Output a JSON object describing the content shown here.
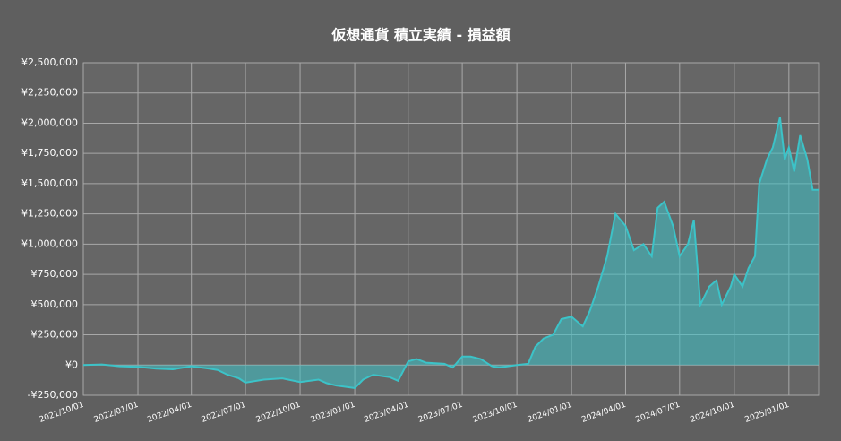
{
  "chart_data": {
    "type": "area",
    "title": "仮想通貨 積立実績 - 損益額",
    "x": [
      "2021/10/01",
      "2021/11/01",
      "2021/12/01",
      "2022/01/01",
      "2022/02/01",
      "2022/03/01",
      "2022/04/01",
      "2022/05/01",
      "2022/05/15",
      "2022/06/01",
      "2022/06/20",
      "2022/07/01",
      "2022/08/01",
      "2022/09/01",
      "2022/10/01",
      "2022/11/01",
      "2022/11/15",
      "2022/12/01",
      "2023/01/01",
      "2023/01/15",
      "2023/02/01",
      "2023/03/01",
      "2023/03/15",
      "2023/04/01",
      "2023/04/15",
      "2023/05/01",
      "2023/06/01",
      "2023/06/15",
      "2023/07/01",
      "2023/07/15",
      "2023/08/01",
      "2023/08/20",
      "2023/09/01",
      "2023/10/01",
      "2023/10/20",
      "2023/11/01",
      "2023/11/15",
      "2023/12/01",
      "2023/12/15",
      "2024/01/01",
      "2024/01/20",
      "2024/02/01",
      "2024/02/15",
      "2024/03/01",
      "2024/03/15",
      "2024/04/01",
      "2024/04/15",
      "2024/05/01",
      "2024/05/15",
      "2024/05/25",
      "2024/06/05",
      "2024/06/20",
      "2024/07/01",
      "2024/07/15",
      "2024/07/25",
      "2024/08/05",
      "2024/08/20",
      "2024/09/01",
      "2024/09/10",
      "2024/09/25",
      "2024/10/01",
      "2024/10/15",
      "2024/10/25",
      "2024/11/05",
      "2024/11/12",
      "2024/11/25",
      "2024/12/05",
      "2024/12/17",
      "2024/12/25",
      "2025/01/01",
      "2025/01/10",
      "2025/01/20",
      "2025/02/01",
      "2025/02/10",
      "2025/02/20"
    ],
    "series": [
      {
        "name": "損益額",
        "color": "#3cc3c8",
        "values": [
          0,
          5000,
          -10000,
          -15000,
          -30000,
          -35000,
          -10000,
          -30000,
          -40000,
          -80000,
          -110000,
          -145000,
          -120000,
          -110000,
          -140000,
          -120000,
          -150000,
          -170000,
          -190000,
          -120000,
          -80000,
          -100000,
          -130000,
          30000,
          50000,
          20000,
          10000,
          -20000,
          70000,
          70000,
          50000,
          -10000,
          -20000,
          0,
          10000,
          150000,
          220000,
          250000,
          380000,
          400000,
          320000,
          450000,
          650000,
          900000,
          1250000,
          1150000,
          950000,
          1000000,
          900000,
          1300000,
          1350000,
          1150000,
          900000,
          1000000,
          1200000,
          500000,
          650000,
          700000,
          500000,
          650000,
          750000,
          650000,
          800000,
          900000,
          1500000,
          1700000,
          1800000,
          2050000,
          1700000,
          1800000,
          1600000,
          1900000,
          1700000,
          1450000,
          1450000
        ]
      }
    ],
    "xlim": [
      "2021/10/01",
      "2025/02/20"
    ],
    "xticks": [
      "2021/10/01",
      "2022/01/01",
      "2022/04/01",
      "2022/07/01",
      "2022/10/01",
      "2023/01/01",
      "2023/04/01",
      "2023/07/01",
      "2023/10/01",
      "2024/01/01",
      "2024/04/01",
      "2024/07/01",
      "2024/10/01",
      "2025/01/01"
    ],
    "ylim": [
      -250000,
      2500000
    ],
    "yticks": [
      {
        "value": -250000,
        "label": "-¥250,000"
      },
      {
        "value": 0,
        "label": "¥0"
      },
      {
        "value": 250000,
        "label": "¥250,000"
      },
      {
        "value": 500000,
        "label": "¥500,000"
      },
      {
        "value": 750000,
        "label": "¥750,000"
      },
      {
        "value": 1000000,
        "label": "¥1,000,000"
      },
      {
        "value": 1250000,
        "label": "¥1,250,000"
      },
      {
        "value": 1500000,
        "label": "¥1,500,000"
      },
      {
        "value": 1750000,
        "label": "¥1,750,000"
      },
      {
        "value": 2000000,
        "label": "¥2,000,000"
      },
      {
        "value": 2250000,
        "label": "¥2,250,000"
      },
      {
        "value": 2500000,
        "label": "¥2,500,000"
      }
    ],
    "grid": true
  }
}
